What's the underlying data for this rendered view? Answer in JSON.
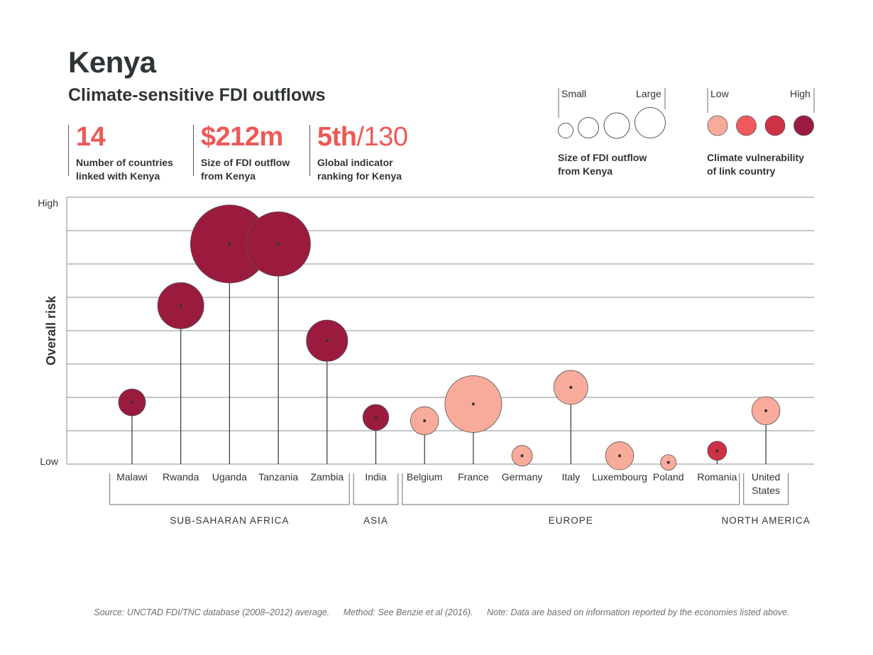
{
  "header": {
    "title": "Kenya",
    "subtitle": "Climate-sensitive FDI outflows"
  },
  "stats": [
    {
      "value": "14",
      "value_suffix": "",
      "line1": "Number of countries",
      "line2": "linked with Kenya"
    },
    {
      "value": "$212m",
      "value_suffix": "",
      "line1": "Size of FDI outflow",
      "line2": "from Kenya"
    },
    {
      "value": "5th",
      "value_suffix": "/130",
      "line1": "Global indicator",
      "line2": "ranking for Kenya"
    }
  ],
  "legend": {
    "size": {
      "low_label": "Small",
      "high_label": "Large",
      "caption1": "Size of FDI outflow",
      "caption2": "from Kenya"
    },
    "color": {
      "low_label": "Low",
      "high_label": "High",
      "caption1": "Climate vulnerability",
      "caption2": "of link country",
      "swatches": [
        "#f8aa9b",
        "#f05a5d",
        "#ce3046",
        "#9b1b3f"
      ]
    }
  },
  "chart_data": {
    "type": "scatter",
    "ylabel": "Overall risk",
    "y_tick_labels": {
      "high": "High",
      "low": "Low"
    },
    "ylim": [
      0,
      8
    ],
    "grid": true,
    "points": [
      {
        "country": "Malawi",
        "region": "SUB-SAHARAN AFRICA",
        "risk": 1.85,
        "size": 0.12,
        "vulnerability": 4
      },
      {
        "country": "Rwanda",
        "region": "SUB-SAHARAN AFRICA",
        "risk": 4.75,
        "size": 0.35,
        "vulnerability": 4
      },
      {
        "country": "Uganda",
        "region": "SUB-SAHARAN AFRICA",
        "risk": 6.6,
        "size": 1.0,
        "vulnerability": 4
      },
      {
        "country": "Tanzania",
        "region": "SUB-SAHARAN AFRICA",
        "risk": 6.6,
        "size": 0.68,
        "vulnerability": 4
      },
      {
        "country": "Zambia",
        "region": "SUB-SAHARAN AFRICA",
        "risk": 3.7,
        "size": 0.28,
        "vulnerability": 4
      },
      {
        "country": "India",
        "region": "ASIA",
        "risk": 1.4,
        "size": 0.11,
        "vulnerability": 4
      },
      {
        "country": "Belgium",
        "region": "EUROPE",
        "risk": 1.3,
        "size": 0.13,
        "vulnerability": 1
      },
      {
        "country": "France",
        "region": "EUROPE",
        "risk": 1.8,
        "size": 0.53,
        "vulnerability": 1
      },
      {
        "country": "Germany",
        "region": "EUROPE",
        "risk": 0.25,
        "size": 0.07,
        "vulnerability": 1
      },
      {
        "country": "Italy",
        "region": "EUROPE",
        "risk": 2.3,
        "size": 0.19,
        "vulnerability": 1
      },
      {
        "country": "Luxembourg",
        "region": "EUROPE",
        "risk": 0.25,
        "size": 0.13,
        "vulnerability": 1
      },
      {
        "country": "Poland",
        "region": "EUROPE",
        "risk": 0.05,
        "size": 0.04,
        "vulnerability": 1
      },
      {
        "country": "Romania",
        "region": "EUROPE",
        "risk": 0.4,
        "size": 0.06,
        "vulnerability": 3
      },
      {
        "country": "United States",
        "label_lines": [
          "United",
          "States"
        ],
        "region": "NORTH AMERICA",
        "risk": 1.6,
        "size": 0.13,
        "vulnerability": 1
      }
    ],
    "regions": [
      "SUB-SAHARAN AFRICA",
      "ASIA",
      "EUROPE",
      "NORTH AMERICA"
    ],
    "vulnerability_colors": [
      "#f8aa9b",
      "#f05a5d",
      "#ce3046",
      "#9b1b3f"
    ]
  },
  "footer": {
    "source": "Source: UNCTAD FDI/TNC database (2008–2012) average.",
    "method": "Method: See Benzie et al (2016).",
    "note": "Note: Data are based on information reported by the economies listed above."
  }
}
